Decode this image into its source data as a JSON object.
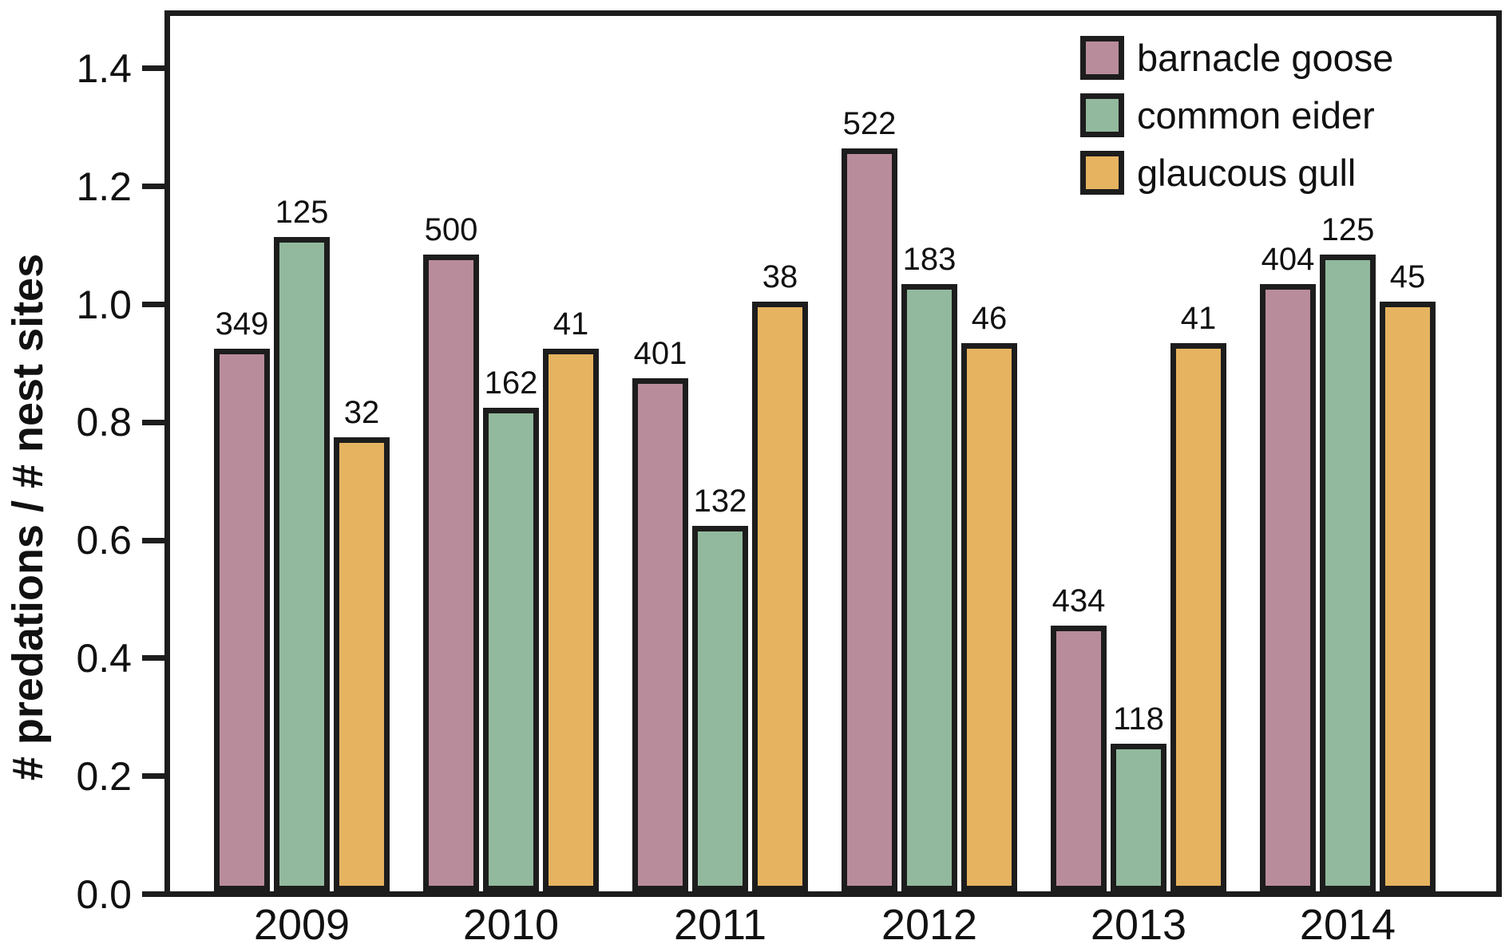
{
  "chart_data": {
    "type": "bar",
    "title": "",
    "xlabel": "",
    "ylabel": "# predations / # nest sites",
    "ylim": [
      0.0,
      1.48
    ],
    "grid": false,
    "legend_position": "top-right-inside",
    "categories": [
      "2009",
      "2010",
      "2011",
      "2012",
      "2013",
      "2014"
    ],
    "yticks": [
      {
        "value": 0.0,
        "label": "0.0"
      },
      {
        "value": 0.2,
        "label": "0.2"
      },
      {
        "value": 0.4,
        "label": "0.4"
      },
      {
        "value": 0.6,
        "label": "0.6"
      },
      {
        "value": 0.8,
        "label": "0.8"
      },
      {
        "value": 1.0,
        "label": "1.0"
      },
      {
        "value": 1.2,
        "label": "1.2"
      },
      {
        "value": 1.4,
        "label": "1.4"
      }
    ],
    "series": [
      {
        "name": "barnacle goose",
        "color": "#b98c9b",
        "values": [
          0.92,
          1.08,
          0.87,
          1.26,
          0.45,
          1.03
        ],
        "bar_labels": [
          "349",
          "500",
          "401",
          "522",
          "434",
          "404"
        ]
      },
      {
        "name": "common eider",
        "color": "#92b99d",
        "values": [
          1.11,
          0.82,
          0.62,
          1.03,
          0.25,
          1.08
        ],
        "bar_labels": [
          "125",
          "162",
          "132",
          "183",
          "118",
          "125"
        ]
      },
      {
        "name": "glaucous gull",
        "color": "#e6b360",
        "values": [
          0.77,
          0.92,
          1.0,
          0.93,
          0.93,
          1.0
        ],
        "bar_labels": [
          "32",
          "41",
          "38",
          "46",
          "41",
          "45"
        ]
      }
    ]
  },
  "style": {
    "frame_color": "#1d1d1d",
    "text_color": "#111111",
    "background": "#ffffff"
  }
}
